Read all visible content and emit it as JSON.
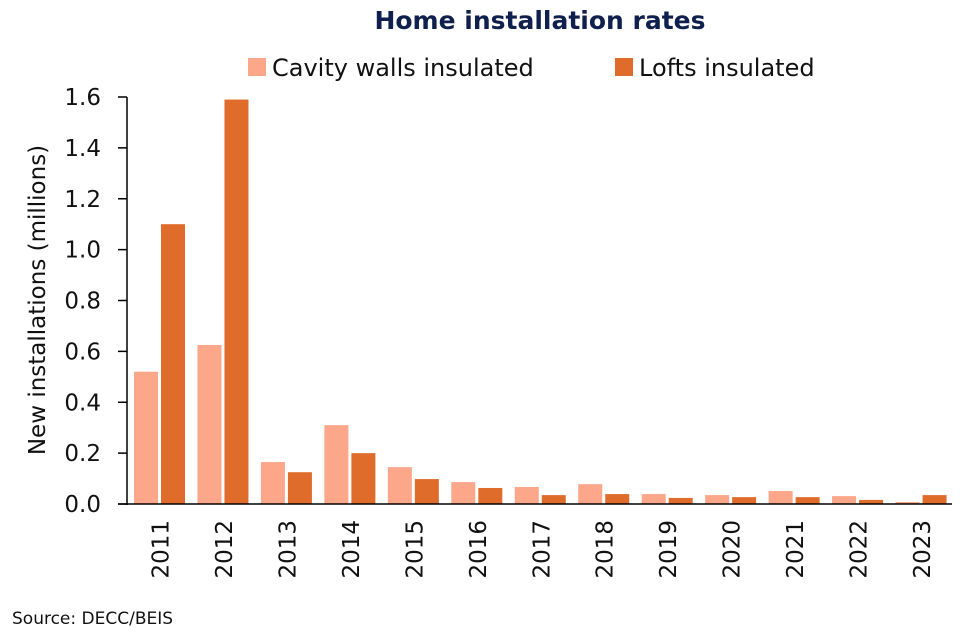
{
  "chart_data": {
    "type": "bar",
    "title": "Home installation rates",
    "xlabel": "",
    "ylabel": "New installations (millions)",
    "ylim": [
      0,
      1.6
    ],
    "yticks": [
      "0.0",
      "0.2",
      "0.4",
      "0.6",
      "0.8",
      "1.0",
      "1.2",
      "1.4",
      "1.6"
    ],
    "ytick_values": [
      0,
      0.2,
      0.4,
      0.6,
      0.8,
      1.0,
      1.2,
      1.4,
      1.6
    ],
    "grid": false,
    "legend_position": "top-center",
    "categories": [
      "2011",
      "2012",
      "2013",
      "2014",
      "2015",
      "2016",
      "2017",
      "2018",
      "2019",
      "2020",
      "2021",
      "2022",
      "2023"
    ],
    "series": [
      {
        "name": "Cavity walls insulated",
        "color": "#fca68a",
        "values": [
          0.52,
          0.625,
          0.165,
          0.31,
          0.145,
          0.086,
          0.067,
          0.078,
          0.039,
          0.035,
          0.051,
          0.031,
          0.008
        ]
      },
      {
        "name": "Lofts insulated",
        "color": "#e06c2b",
        "values": [
          1.1,
          1.59,
          0.125,
          0.2,
          0.098,
          0.063,
          0.035,
          0.039,
          0.024,
          0.027,
          0.027,
          0.016,
          0.035
        ]
      }
    ],
    "source": "Source: DECC/BEIS"
  }
}
